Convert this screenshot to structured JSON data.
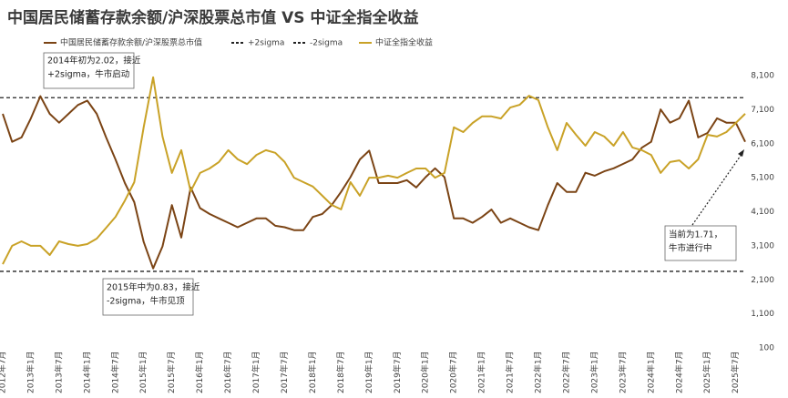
{
  "chart_data": {
    "type": "line",
    "title": "中国居民储蓄存款余额/沪深股票总市值 VS 中证全指全收益",
    "categories": [
      "2012年7月",
      null,
      null,
      "2013年1月",
      null,
      null,
      "2013年7月",
      null,
      null,
      "2014年1月",
      null,
      null,
      "2014年7月",
      null,
      null,
      "2015年1月",
      null,
      null,
      "2015年7月",
      null,
      null,
      "2016年1月",
      null,
      null,
      "2016年7月",
      null,
      null,
      "2017年1月",
      null,
      null,
      "2017年7月",
      null,
      null,
      "2018年1月",
      null,
      null,
      "2018年7月",
      null,
      null,
      "2019年1月",
      null,
      null,
      "2019年7月",
      null,
      null,
      "2020年1月",
      null,
      null,
      "2020年7月",
      null,
      null,
      "2021年1月",
      null,
      null,
      "2021年7月",
      null,
      null,
      "2022年1月",
      null,
      null,
      "2022年7月",
      null,
      null,
      "2023年1月",
      null,
      null,
      "2023年7月",
      null,
      null,
      "2024年1月",
      null,
      null,
      "2024年7月",
      null,
      null,
      "2025年1月",
      null,
      null,
      "2025年7月",
      null
    ],
    "series": [
      {
        "name": "中国居民储蓄存款余额/沪深股票总市值",
        "color": "#7b4415",
        "axis": "y",
        "values": [
          1.9,
          1.71,
          1.74,
          1.87,
          2.02,
          1.9,
          1.84,
          1.9,
          1.96,
          1.99,
          1.9,
          1.74,
          1.59,
          1.43,
          1.3,
          1.03,
          0.85,
          1.0,
          1.28,
          1.06,
          1.4,
          1.26,
          1.22,
          1.19,
          1.16,
          1.13,
          1.16,
          1.19,
          1.19,
          1.14,
          1.13,
          1.11,
          1.11,
          1.2,
          1.22,
          1.28,
          1.37,
          1.47,
          1.59,
          1.65,
          1.43,
          1.43,
          1.43,
          1.45,
          1.4,
          1.47,
          1.53,
          1.47,
          1.19,
          1.19,
          1.16,
          1.2,
          1.25,
          1.16,
          1.19,
          1.16,
          1.13,
          1.11,
          1.28,
          1.43,
          1.37,
          1.37,
          1.5,
          1.48,
          1.51,
          1.53,
          1.56,
          1.59,
          1.67,
          1.71,
          1.93,
          1.84,
          1.87,
          1.99,
          1.74,
          1.77,
          1.87,
          1.84,
          1.84,
          1.71
        ]
      },
      {
        "name": "中证全指全收益",
        "color": "#c9a227",
        "axis": "y2",
        "values": [
          2560,
          3100,
          3230,
          3100,
          3100,
          2830,
          3230,
          3150,
          3100,
          3150,
          3310,
          3630,
          3950,
          4430,
          4970,
          6580,
          8050,
          6310,
          5240,
          5910,
          4700,
          5240,
          5370,
          5560,
          5910,
          5640,
          5500,
          5770,
          5910,
          5830,
          5560,
          5100,
          4970,
          4840,
          4570,
          4300,
          4170,
          4970,
          4570,
          5100,
          5100,
          5160,
          5100,
          5240,
          5370,
          5370,
          5100,
          5240,
          6580,
          6440,
          6710,
          6900,
          6900,
          6840,
          7160,
          7240,
          7510,
          7380,
          6580,
          5910,
          6710,
          6360,
          6040,
          6440,
          6310,
          6040,
          6440,
          5990,
          5910,
          5770,
          5240,
          5560,
          5610,
          5370,
          5640,
          6360,
          6310,
          6440,
          6710,
          6980
        ]
      }
    ],
    "reference_lines": [
      {
        "name": "+2sigma",
        "value": 2.01,
        "color": "#222222"
      },
      {
        "name": "-2sigma",
        "value": 0.83,
        "color": "#222222"
      }
    ],
    "ylim": [
      0.31,
      2.16
    ],
    "y2lim": [
      100,
      8100
    ],
    "y2ticks": [
      100,
      {
        "value": 1100,
        "label": "1,100"
      },
      {
        "value": 2100,
        "label": "2,100"
      },
      {
        "value": 3100,
        "label": "3,100"
      },
      {
        "value": 4100,
        "label": "4,100"
      },
      {
        "value": 5100,
        "label": "5,100"
      },
      {
        "value": 6100,
        "label": "6,100"
      },
      {
        "value": 7100,
        "label": "7,100"
      },
      {
        "value": 8100,
        "label": "8,100"
      }
    ],
    "annotations": [
      {
        "lines": [
          "2014年初为2.02，接近",
          "+2sigma，牛市启动"
        ]
      },
      {
        "lines": [
          "2015年中为0.83，接近",
          "-2sigma，牛市见顶"
        ]
      },
      {
        "lines": [
          "当前为1.71，",
          "牛市进行中"
        ]
      }
    ]
  }
}
